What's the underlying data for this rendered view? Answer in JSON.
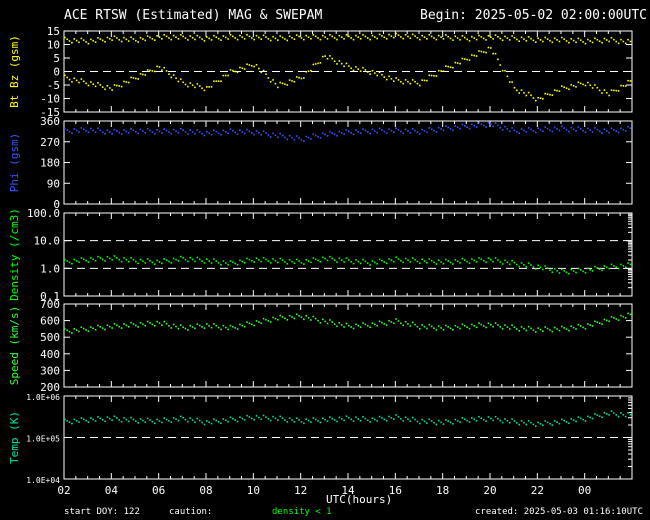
{
  "header": {
    "title": "ACE RTSW (Estimated) MAG & SWEPAM",
    "begin": "Begin: 2025-05-02 02:00:00UTC"
  },
  "footer": {
    "start_doy": "start DOY: 122",
    "caution_label": "caution:",
    "caution_note": "density < 1",
    "created": "created: 2025-05-03 01:16:10UTC"
  },
  "colors": {
    "bt": "#ffff00",
    "bz": "#ffff00",
    "phi": "#3355ff",
    "density": "#00ff00",
    "speed": "#33ff33",
    "temp": "#00e0a0",
    "axes": "#ffffff"
  },
  "chart_data": [
    {
      "type": "scatter",
      "ylabel": "Bt Bz (gsm)",
      "ylim": [
        -15,
        15
      ],
      "yticks": [
        15,
        10,
        5,
        0,
        -5,
        -10,
        -15
      ],
      "dashed_lines": [
        0
      ],
      "xlim": [
        0,
        24
      ],
      "series": [
        {
          "key": "bt",
          "x": [
            0,
            1,
            2,
            3,
            4,
            5,
            6,
            7,
            8,
            9,
            10,
            11,
            12,
            13,
            14,
            15,
            16,
            17,
            18,
            19,
            20,
            21,
            22,
            23,
            24
          ],
          "y": [
            12,
            11.5,
            12.5,
            12,
            13,
            13,
            12.5,
            13,
            13,
            12.5,
            13,
            13,
            13,
            13,
            13.5,
            13,
            13,
            12.5,
            13,
            12.5,
            12,
            12,
            11.5,
            12,
            11
          ]
        },
        {
          "key": "bz",
          "x": [
            0,
            1,
            2,
            3,
            4,
            5,
            6,
            7,
            8,
            9,
            10,
            11,
            12,
            13,
            14,
            15,
            16,
            17,
            18,
            19,
            20,
            21,
            22,
            23,
            24
          ],
          "y": [
            -2,
            -4,
            -6,
            -2,
            2,
            -4,
            -6,
            0,
            3,
            -5,
            -2,
            6,
            2,
            0,
            -3,
            -4,
            1,
            5,
            9,
            -6,
            -10,
            -6,
            -4,
            -8,
            -3
          ]
        }
      ]
    },
    {
      "type": "scatter",
      "ylabel": "Phi (gsm)",
      "ylim": [
        0,
        360
      ],
      "yticks": [
        360,
        270,
        180,
        90,
        0
      ],
      "dashed_lines": [],
      "xlim": [
        0,
        24
      ],
      "series": [
        {
          "key": "phi",
          "x": [
            0,
            1,
            2,
            3,
            4,
            5,
            6,
            7,
            8,
            9,
            10,
            11,
            12,
            13,
            14,
            15,
            16,
            17,
            18,
            19,
            20,
            21,
            22,
            23,
            24
          ],
          "y": [
            320,
            325,
            315,
            320,
            318,
            320,
            310,
            318,
            315,
            300,
            285,
            305,
            315,
            320,
            322,
            318,
            330,
            340,
            350,
            320,
            325,
            330,
            325,
            320,
            330
          ]
        }
      ]
    },
    {
      "type": "scatter",
      "ylabel": "Density (/cm3)",
      "ylim": [
        0.1,
        100
      ],
      "yscale": "log",
      "yticks": [
        100,
        10,
        1,
        0.1
      ],
      "ytick_labels": [
        "100.0",
        "10.0",
        "1.0",
        "0.1"
      ],
      "dashed_lines": [
        10,
        1
      ],
      "xlim": [
        0,
        24
      ],
      "series": [
        {
          "key": "density",
          "x": [
            0,
            1,
            2,
            3,
            4,
            5,
            6,
            7,
            8,
            9,
            10,
            11,
            12,
            13,
            14,
            15,
            16,
            17,
            18,
            19,
            20,
            21,
            22,
            23,
            24
          ],
          "y": [
            1.8,
            2.2,
            2.5,
            2.0,
            1.8,
            2.4,
            2.0,
            1.6,
            2.2,
            2.0,
            1.8,
            2.4,
            2.0,
            1.7,
            2.2,
            2.0,
            1.8,
            2.0,
            2.2,
            1.6,
            1.2,
            0.8,
            0.9,
            1.2,
            1.4
          ]
        }
      ]
    },
    {
      "type": "scatter",
      "ylabel": "Speed (km/s)",
      "ylim": [
        200,
        700
      ],
      "yticks": [
        700,
        600,
        500,
        400,
        300,
        200
      ],
      "dashed_lines": [],
      "xlim": [
        0,
        24
      ],
      "series": [
        {
          "key": "speed",
          "x": [
            0,
            1,
            2,
            3,
            4,
            5,
            6,
            7,
            8,
            9,
            10,
            11,
            12,
            13,
            14,
            15,
            16,
            17,
            18,
            19,
            20,
            21,
            22,
            23,
            24
          ],
          "y": [
            540,
            555,
            570,
            580,
            590,
            560,
            575,
            560,
            590,
            620,
            630,
            600,
            570,
            580,
            600,
            570,
            560,
            570,
            580,
            560,
            550,
            555,
            570,
            610,
            640
          ]
        }
      ]
    },
    {
      "type": "scatter",
      "ylabel": "Temp (K)",
      "ylim": [
        10000,
        1000000
      ],
      "yscale": "log",
      "yticks": [
        1000000,
        100000,
        10000
      ],
      "ytick_labels": [
        "1.0E+06",
        "1.0E+05",
        "1.0E+04"
      ],
      "dashed_lines": [
        100000
      ],
      "xlim": [
        0,
        24
      ],
      "series": [
        {
          "key": "temp",
          "x": [
            0,
            1,
            2,
            3,
            4,
            5,
            6,
            7,
            8,
            9,
            10,
            11,
            12,
            13,
            14,
            15,
            16,
            17,
            18,
            19,
            20,
            21,
            22,
            23,
            24
          ],
          "y": [
            250000,
            280000,
            300000,
            270000,
            260000,
            300000,
            240000,
            280000,
            320000,
            300000,
            260000,
            280000,
            300000,
            280000,
            320000,
            260000,
            240000,
            280000,
            300000,
            250000,
            220000,
            250000,
            300000,
            400000,
            350000
          ]
        }
      ]
    }
  ],
  "xaxis": {
    "label": "UTC(hours)",
    "tick_labels": [
      "02",
      "04",
      "06",
      "08",
      "10",
      "12",
      "14",
      "16",
      "18",
      "20",
      "22",
      "00"
    ]
  }
}
